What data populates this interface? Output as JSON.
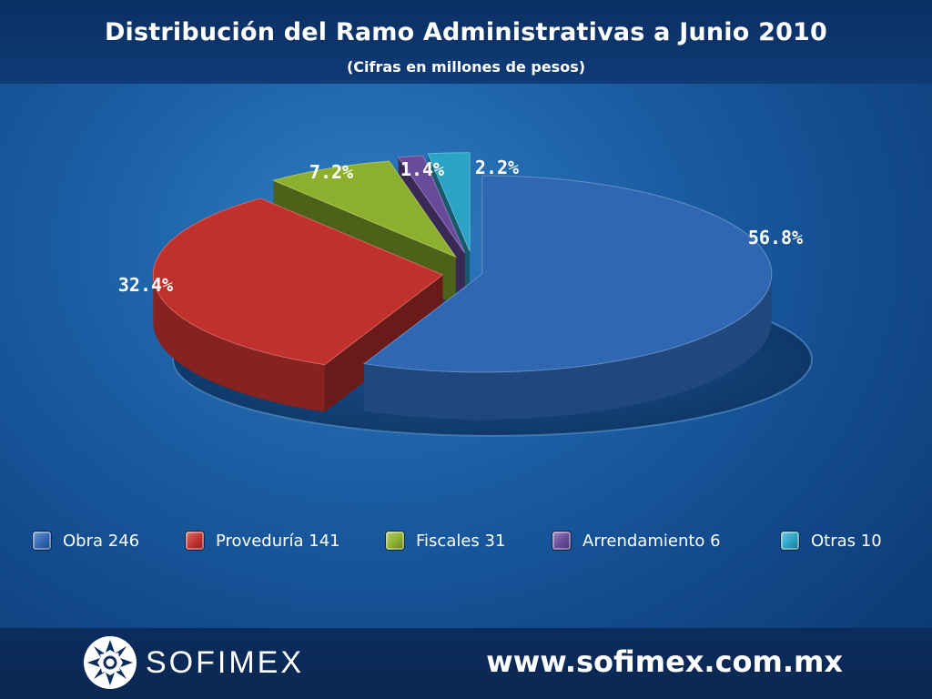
{
  "header": {
    "title": "Distribución del Ramo Administrativas a Junio 2010",
    "subtitle": "(Cifras en millones de pesos)"
  },
  "chart_data": {
    "type": "pie",
    "title": "Distribución del Ramo Administrativas a Junio 2010",
    "subtitle": "(Cifras en millones de pesos)",
    "categories": [
      "Obra",
      "Proveduría",
      "Fiscales",
      "Arrendamiento",
      "Otras"
    ],
    "values": [
      246,
      141,
      31,
      6,
      10
    ],
    "percent_labels": [
      "56.8%",
      "32.4%",
      "7.2%",
      "1.4%",
      "2.2%"
    ],
    "colors": [
      "#2f67b3",
      "#c0312d",
      "#8cb02e",
      "#6a4a9a",
      "#2aa3c5"
    ],
    "legend_position": "bottom"
  },
  "legend": {
    "items": [
      {
        "label": "Obra 246",
        "color": "#2f67b3"
      },
      {
        "label": "Proveduría 141",
        "color": "#c0312d"
      },
      {
        "label": "Fiscales 31",
        "color": "#8cb02e"
      },
      {
        "label": "Arrendamiento 6",
        "color": "#6a4a9a"
      },
      {
        "label": "Otras 10",
        "color": "#2aa3c5"
      }
    ]
  },
  "footer": {
    "logo_text": "SOFIMEX",
    "website": "www.sofimex.com.mx"
  }
}
